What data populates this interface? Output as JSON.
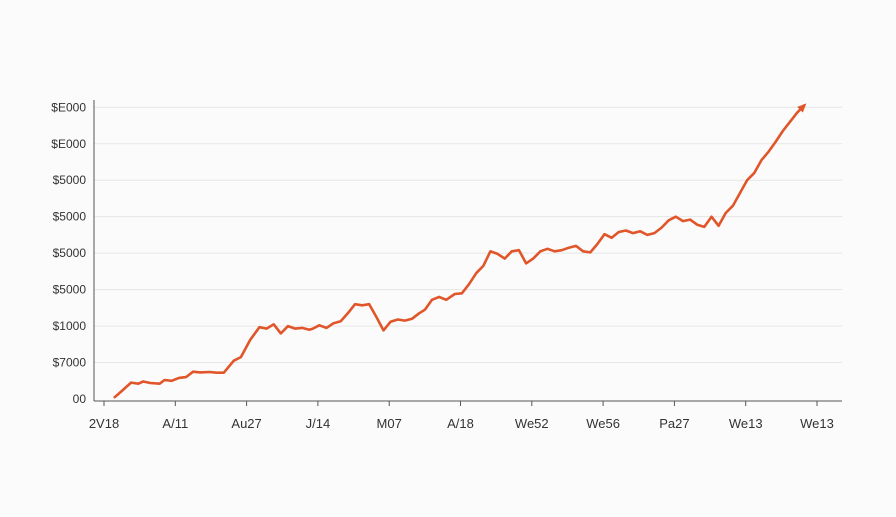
{
  "colors": {
    "background": "#fbfbfb",
    "line": "#e0562a",
    "grid": "#e6e6e6",
    "axis": "#555555",
    "text": "#333333"
  },
  "chart_data": {
    "type": "line",
    "title": "",
    "xlabel": "",
    "ylabel": "",
    "grid": true,
    "legend": "none",
    "end_marker": "arrow",
    "y_ticks": [
      {
        "label": "00",
        "value": 0
      },
      {
        "label": "$7000",
        "value": 1
      },
      {
        "label": "$1000",
        "value": 2
      },
      {
        "label": "$5000",
        "value": 3
      },
      {
        "label": "$5000",
        "value": 4
      },
      {
        "label": "$5000",
        "value": 5
      },
      {
        "label": "$5000",
        "value": 6
      },
      {
        "label": "$E000",
        "value": 7
      },
      {
        "label": "$E000",
        "value": 8
      }
    ],
    "x_ticks": [
      {
        "label": "2V18",
        "value": 0
      },
      {
        "label": "A/11",
        "value": 1
      },
      {
        "label": "Au27",
        "value": 2
      },
      {
        "label": "J/14",
        "value": 3
      },
      {
        "label": "M07",
        "value": 4
      },
      {
        "label": "A/18",
        "value": 5
      },
      {
        "label": "We52",
        "value": 6
      },
      {
        "label": "We56",
        "value": 7
      },
      {
        "label": "Pa27",
        "value": 8
      },
      {
        "label": "We13",
        "value": 9
      },
      {
        "label": "We13",
        "value": 10
      }
    ],
    "xlim": [
      0,
      10
    ],
    "ylim": [
      0,
      8.2
    ],
    "series": [
      {
        "x": [
          0.15,
          0.25,
          0.38,
          0.48,
          0.55,
          0.65,
          0.78,
          0.85,
          0.95,
          1.05,
          1.15,
          1.25,
          1.35,
          1.48,
          1.58,
          1.68,
          1.82,
          1.92,
          2.05,
          2.18,
          2.28,
          2.38,
          2.48,
          2.58,
          2.68,
          2.78,
          2.88,
          2.93,
          3.02,
          3.12,
          3.22,
          3.32,
          3.42,
          3.52,
          3.62,
          3.72,
          3.82,
          3.92,
          4.02,
          4.12,
          4.22,
          4.32,
          4.42,
          4.5,
          4.6,
          4.7,
          4.8,
          4.92,
          5.02,
          5.12,
          5.22,
          5.32,
          5.42,
          5.52,
          5.62,
          5.72,
          5.82,
          5.92,
          6.02,
          6.12,
          6.22,
          6.32,
          6.42,
          6.52,
          6.62,
          6.72,
          6.82,
          6.92,
          7.02,
          7.12,
          7.22,
          7.32,
          7.42,
          7.52,
          7.62,
          7.72,
          7.82,
          7.92,
          8.02,
          8.12,
          8.22,
          8.32,
          8.42,
          8.52,
          8.62,
          8.72,
          8.82,
          8.92,
          9.02,
          9.12,
          9.22,
          9.32,
          9.42,
          9.52,
          9.62,
          9.72,
          9.82
        ],
        "y": [
          0.05,
          0.22,
          0.45,
          0.42,
          0.48,
          0.44,
          0.42,
          0.52,
          0.5,
          0.58,
          0.6,
          0.75,
          0.73,
          0.74,
          0.72,
          0.72,
          1.05,
          1.15,
          1.62,
          1.97,
          1.93,
          2.05,
          1.8,
          2.0,
          1.93,
          1.95,
          1.9,
          1.93,
          2.02,
          1.95,
          2.08,
          2.13,
          2.35,
          2.6,
          2.57,
          2.6,
          2.25,
          1.88,
          2.12,
          2.18,
          2.15,
          2.2,
          2.35,
          2.45,
          2.72,
          2.8,
          2.72,
          2.88,
          2.9,
          3.15,
          3.45,
          3.65,
          4.05,
          3.98,
          3.85,
          4.05,
          4.08,
          3.72,
          3.85,
          4.05,
          4.12,
          4.05,
          4.08,
          4.15,
          4.2,
          4.05,
          4.02,
          4.25,
          4.52,
          4.42,
          4.58,
          4.62,
          4.55,
          4.6,
          4.5,
          4.55,
          4.7,
          4.9,
          5.0,
          4.88,
          4.92,
          4.78,
          4.72,
          5.0,
          4.75,
          5.1,
          5.3,
          5.65,
          6.0,
          6.2,
          6.55,
          6.78,
          7.05,
          7.35,
          7.6,
          7.85,
          8.05
        ]
      }
    ]
  }
}
